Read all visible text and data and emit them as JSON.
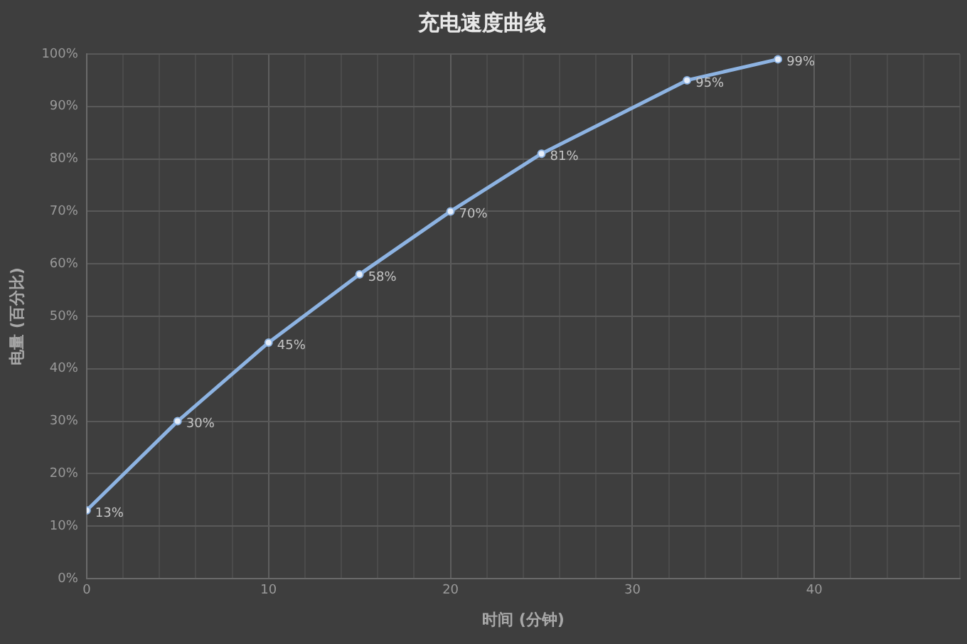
{
  "chart_data": {
    "type": "line",
    "title": "充电速度曲线",
    "xlabel": "时间 (分钟)",
    "ylabel": "电量 (百分比)",
    "x": [
      0,
      5,
      10,
      15,
      20,
      25,
      33,
      38
    ],
    "series": [
      {
        "color": "#8db3e2",
        "values": [
          13,
          30,
          45,
          58,
          70,
          81,
          95,
          99
        ],
        "value_labels": [
          "13%",
          "30%",
          "45%",
          "58%",
          "70%",
          "81%",
          "95%",
          "99%"
        ]
      }
    ],
    "xlim": [
      0,
      48
    ],
    "xticks": [
      0,
      {
        "value": 2,
        "label": null
      },
      {
        "value": 4,
        "label": null
      },
      {
        "value": 6,
        "label": null
      },
      {
        "value": 8,
        "label": null
      },
      10,
      {
        "value": 12,
        "label": null
      },
      {
        "value": 14,
        "label": null
      },
      {
        "value": 16,
        "label": null
      },
      {
        "value": 18,
        "label": null
      },
      20,
      {
        "value": 22,
        "label": null
      },
      {
        "value": 24,
        "label": null
      },
      {
        "value": 26,
        "label": null
      },
      {
        "value": 28,
        "label": null
      },
      30,
      {
        "value": 32,
        "label": null
      },
      {
        "value": 34,
        "label": null
      },
      {
        "value": 36,
        "label": null
      },
      {
        "value": 38,
        "label": null
      },
      40,
      {
        "value": 42,
        "label": null
      },
      {
        "value": 44,
        "label": null
      },
      {
        "value": 46,
        "label": null
      },
      {
        "value": 48,
        "label": null
      }
    ],
    "ylim": [
      0,
      100
    ],
    "yticks": [
      {
        "value": 0,
        "label": "0%"
      },
      {
        "value": 10,
        "label": "10%"
      },
      {
        "value": 20,
        "label": "20%"
      },
      {
        "value": 30,
        "label": "30%"
      },
      {
        "value": 40,
        "label": "40%"
      },
      {
        "value": 50,
        "label": "50%"
      },
      {
        "value": 60,
        "label": "60%"
      },
      {
        "value": 70,
        "label": "70%"
      },
      {
        "value": 80,
        "label": "80%"
      },
      {
        "value": 90,
        "label": "90%"
      },
      {
        "value": 100,
        "label": "100%"
      }
    ],
    "grid": true,
    "legend": false,
    "marker": "circle",
    "line_style": "solid"
  }
}
